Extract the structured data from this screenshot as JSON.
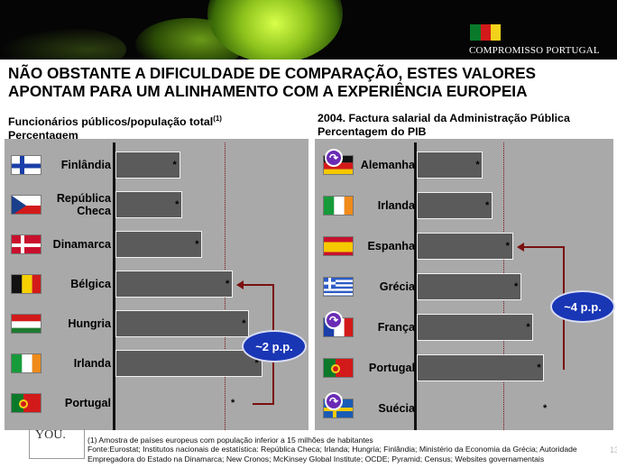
{
  "header": {
    "brand": "COMPROMISSO PORTUGAL",
    "brand_colors": [
      "#0a7a2a",
      "#d21a1a",
      "#f2d21a"
    ]
  },
  "title": {
    "line1": "NÃO OBSTANTE A DIFICULDADE DE COMPARAÇÃO, ESTES VALORES",
    "line2": "APONTAM PARA UM ALINHAMENTO COM A EXPERIÊNCIA EUROPEIA"
  },
  "left_panel": {
    "title_line1": "Funcionários públicos/população total",
    "title_sup": "(1)",
    "title_line2": "Percentagem",
    "bubble": "~2 p.p."
  },
  "right_panel": {
    "title_line1": "2004. Factura salarial da Administração Pública",
    "title_line2": "Percentagem do PIB",
    "bubble": "~4 p.p."
  },
  "chart_data": [
    {
      "type": "bar",
      "orientation": "horizontal",
      "title": "Funcionários públicos/população total",
      "subtitle": "Percentagem",
      "categories": [
        "Finlândia",
        "República Checa",
        "Dinamarca",
        "Bélgica",
        "Hungria",
        "Irlanda",
        "Portugal"
      ],
      "category_label_lines": [
        [
          "Finlândia"
        ],
        [
          "República",
          "Checa"
        ],
        [
          "Dinamarca"
        ],
        [
          "Bélgica"
        ],
        [
          "Hungria"
        ],
        [
          "Irlanda"
        ],
        [
          "Portugal"
        ]
      ],
      "values": [
        0.55,
        0.57,
        0.74,
        1.0,
        1.14,
        1.25,
        0
      ],
      "value_labels": [
        "*",
        "*",
        "*",
        "*",
        "*",
        "*",
        "*"
      ],
      "reference_line": 0.93,
      "xlim": [
        0,
        2.0
      ],
      "annotation": "~2 p.p.",
      "grid": false
    },
    {
      "type": "bar",
      "orientation": "horizontal",
      "title": "2004. Factura salarial da Administração Pública",
      "subtitle": "Percentagem do PIB",
      "categories": [
        "Alemanha",
        "Irlanda",
        "Espanha",
        "Grécia",
        "França",
        "Portugal",
        "Suécia"
      ],
      "category_label_lines": [
        [
          "Alemanha"
        ],
        [
          "Irlanda"
        ],
        [
          "Espanha"
        ],
        [
          "Grécia"
        ],
        [
          "França"
        ],
        [
          "Portugal"
        ],
        [
          "Suécia"
        ]
      ],
      "values": [
        0.55,
        0.63,
        0.8,
        0.87,
        0.97,
        1.06,
        0
      ],
      "value_labels": [
        "*",
        "*",
        "*",
        "*",
        "*",
        "*",
        "*"
      ],
      "reference_line": 0.72,
      "xlim": [
        0,
        1.5
      ],
      "annotation": "~4 p.p.",
      "grid": false
    }
  ],
  "flags": {
    "left": [
      "finland",
      "czech",
      "denmark",
      "belgium",
      "hungary",
      "ireland",
      "portugal"
    ],
    "right": [
      "germany",
      "ireland",
      "spain",
      "greece",
      "france",
      "portugal",
      "sweden"
    ]
  },
  "icons": {
    "redo": "↷"
  },
  "footer": {
    "you": "YOU.",
    "note1": "(1)  Amostra de países europeus com população inferior a 15 milhões de habitantes",
    "note2": "Fonte:Eurostat; Institutos nacionais de estatística: República Checa; Irlanda; Hungria; Finlândia; Ministério da Economia da Grécia; Autoridade",
    "note3": "Empregadora do Estado na Dinamarca; New Cronos; McKinsey Global Institute; OCDE; Pyramid; Census; Websites governamentais",
    "page": "13"
  }
}
